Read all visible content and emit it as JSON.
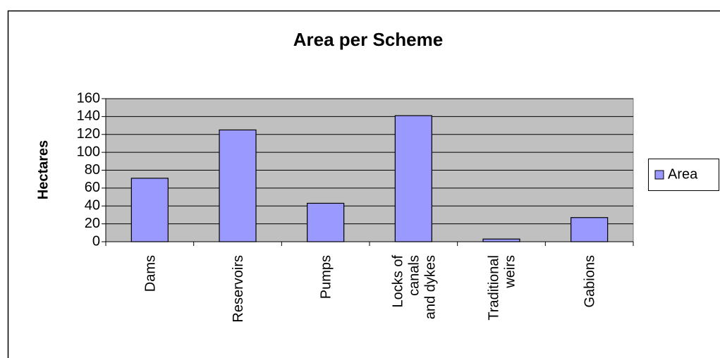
{
  "chart_data": {
    "type": "bar",
    "title": "Area per Scheme",
    "y_label": "Hectares",
    "categories": [
      "Dams",
      "Reservoirs",
      "Pumps",
      "Locks of canals and dykes",
      "Traditional weirs",
      "Gabions"
    ],
    "series": [
      {
        "name": "Area",
        "color": "#9999ff",
        "values": [
          71,
          125,
          43,
          141,
          3,
          27
        ]
      }
    ],
    "ylim": [
      0,
      160
    ],
    "yticks": [
      0,
      20,
      40,
      60,
      80,
      100,
      120,
      140,
      160
    ],
    "grid": true,
    "legend": "right"
  }
}
